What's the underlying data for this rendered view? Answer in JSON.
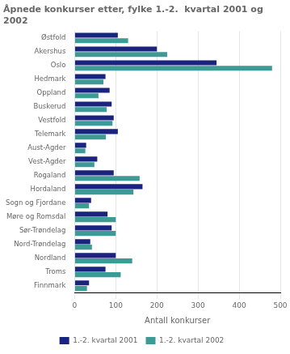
{
  "chart_data": {
    "type": "bar",
    "orientation": "horizontal",
    "title": "Åpnede konkurser etter, fylke 1.-2.  kvartal 2001 og\n2002",
    "categories": [
      "Østfold",
      "Akershus",
      "Oslo",
      "Hedmark",
      "Oppland",
      "Buskerud",
      "Vestfold",
      "Telemark",
      "Aust-Agder",
      "Vest-Agder",
      "Rogaland",
      "Hordaland",
      "Sogn og Fjordane",
      "Møre og Romsdal",
      "Sør-Trøndelag",
      "Nord-Trøndelag",
      "Nordland",
      "Troms",
      "Finnmark"
    ],
    "series": [
      {
        "name": "1.-2. kvartal 2001",
        "color": "#1a237e",
        "values": [
          105,
          200,
          345,
          75,
          85,
          90,
          95,
          105,
          28,
          55,
          95,
          165,
          40,
          80,
          90,
          38,
          100,
          75,
          35
        ]
      },
      {
        "name": "1.-2. kvartal 2002",
        "color": "#3d9b96",
        "values": [
          130,
          225,
          480,
          70,
          58,
          78,
          92,
          76,
          26,
          48,
          158,
          143,
          35,
          100,
          100,
          42,
          140,
          112,
          30
        ]
      }
    ],
    "xlabel": "Antall konkurser",
    "xlim": [
      0,
      500
    ],
    "xticks": [
      0,
      100,
      200,
      300,
      400,
      500
    ],
    "grid": true,
    "legend": "bottom"
  }
}
